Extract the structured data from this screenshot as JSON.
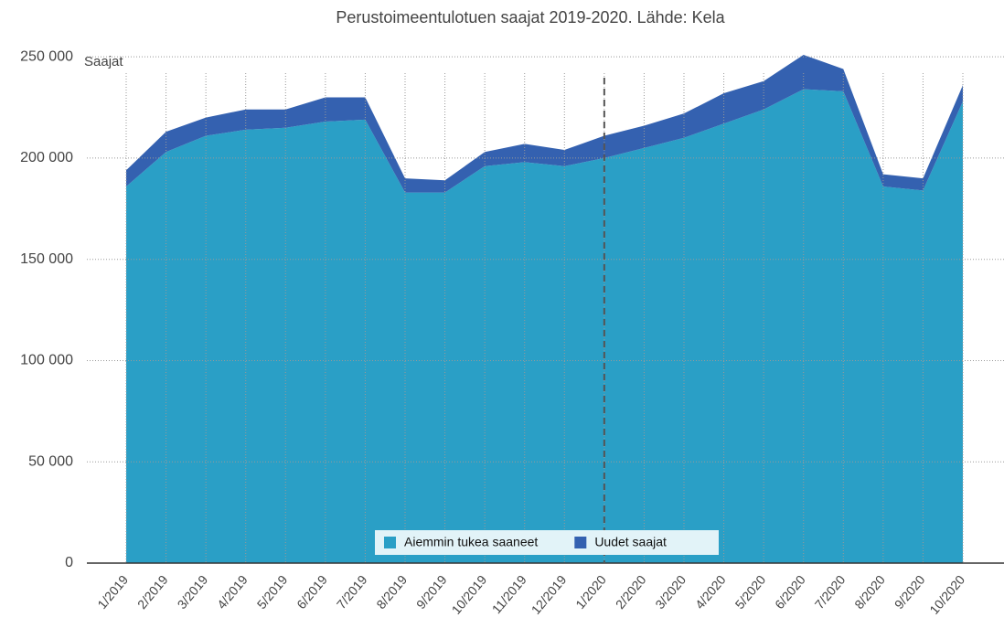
{
  "chart_data": {
    "type": "stacked_area",
    "title": "Perustoimeentulotuen saajat 2019-2020. Lähde: Kela",
    "y_label": "Saajat",
    "categories": [
      "1/2019",
      "2/2019",
      "3/2019",
      "4/2019",
      "5/2019",
      "6/2019",
      "7/2019",
      "8/2019",
      "9/2019",
      "10/2019",
      "11/2019",
      "12/2019",
      "1/2020",
      "2/2020",
      "3/2020",
      "4/2020",
      "5/2020",
      "6/2020",
      "7/2020",
      "8/2020",
      "9/2020",
      "10/2020"
    ],
    "series": [
      {
        "name": "Aiemmin tukea saaneet",
        "color": "#2a9fc6",
        "values": [
          186000,
          203000,
          211000,
          214000,
          215000,
          218000,
          219000,
          183000,
          183000,
          196000,
          198000,
          196000,
          200000,
          205000,
          210000,
          217000,
          224000,
          234000,
          233000,
          186000,
          184000,
          228000
        ]
      },
      {
        "name": "Uudet saajat",
        "color": "#3461b0",
        "values": [
          8000,
          10000,
          9000,
          10000,
          9000,
          12000,
          11000,
          7000,
          6000,
          7000,
          9000,
          8000,
          11000,
          11000,
          12000,
          15000,
          14000,
          17000,
          11000,
          6000,
          6000,
          8000
        ]
      }
    ],
    "vline": "1/2020",
    "ylim": [
      0,
      260000
    ],
    "yticks": [
      0,
      {
        "value": 50000,
        "label": "50 000"
      },
      {
        "value": 100000,
        "label": "100 000"
      },
      {
        "value": 150000,
        "label": "150 000"
      },
      {
        "value": 200000,
        "label": "200 000"
      },
      {
        "value": 250000,
        "label": "250 000"
      }
    ],
    "grid": true,
    "legend": "bottom"
  }
}
